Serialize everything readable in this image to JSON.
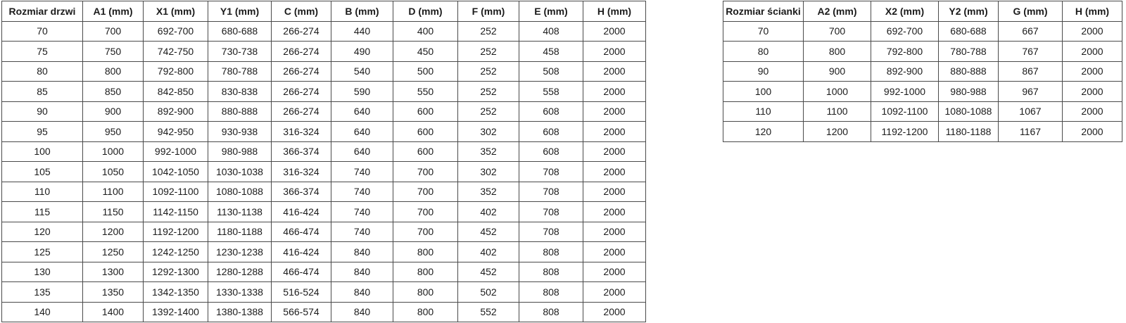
{
  "page": {
    "background_color": "#ffffff",
    "border_color": "#4a4a4a",
    "text_color": "#1b1b1b"
  },
  "door_table": {
    "headers": [
      "Rozmiar drzwi",
      "A1 (mm)",
      "X1 (mm)",
      "Y1 (mm)",
      "C (mm)",
      "B (mm)",
      "D (mm)",
      "F (mm)",
      "E (mm)",
      "H (mm)"
    ],
    "rows": [
      [
        "70",
        "700",
        "692-700",
        "680-688",
        "266-274",
        "440",
        "400",
        "252",
        "408",
        "2000"
      ],
      [
        "75",
        "750",
        "742-750",
        "730-738",
        "266-274",
        "490",
        "450",
        "252",
        "458",
        "2000"
      ],
      [
        "80",
        "800",
        "792-800",
        "780-788",
        "266-274",
        "540",
        "500",
        "252",
        "508",
        "2000"
      ],
      [
        "85",
        "850",
        "842-850",
        "830-838",
        "266-274",
        "590",
        "550",
        "252",
        "558",
        "2000"
      ],
      [
        "90",
        "900",
        "892-900",
        "880-888",
        "266-274",
        "640",
        "600",
        "252",
        "608",
        "2000"
      ],
      [
        "95",
        "950",
        "942-950",
        "930-938",
        "316-324",
        "640",
        "600",
        "302",
        "608",
        "2000"
      ],
      [
        "100",
        "1000",
        "992-1000",
        "980-988",
        "366-374",
        "640",
        "600",
        "352",
        "608",
        "2000"
      ],
      [
        "105",
        "1050",
        "1042-1050",
        "1030-1038",
        "316-324",
        "740",
        "700",
        "302",
        "708",
        "2000"
      ],
      [
        "110",
        "1100",
        "1092-1100",
        "1080-1088",
        "366-374",
        "740",
        "700",
        "352",
        "708",
        "2000"
      ],
      [
        "115",
        "1150",
        "1142-1150",
        "1130-1138",
        "416-424",
        "740",
        "700",
        "402",
        "708",
        "2000"
      ],
      [
        "120",
        "1200",
        "1192-1200",
        "1180-1188",
        "466-474",
        "740",
        "700",
        "452",
        "708",
        "2000"
      ],
      [
        "125",
        "1250",
        "1242-1250",
        "1230-1238",
        "416-424",
        "840",
        "800",
        "402",
        "808",
        "2000"
      ],
      [
        "130",
        "1300",
        "1292-1300",
        "1280-1288",
        "466-474",
        "840",
        "800",
        "452",
        "808",
        "2000"
      ],
      [
        "135",
        "1350",
        "1342-1350",
        "1330-1338",
        "516-524",
        "840",
        "800",
        "502",
        "808",
        "2000"
      ],
      [
        "140",
        "1400",
        "1392-1400",
        "1380-1388",
        "566-574",
        "840",
        "800",
        "552",
        "808",
        "2000"
      ]
    ]
  },
  "wall_table": {
    "headers": [
      "Rozmiar ścianki",
      "A2 (mm)",
      "X2 (mm)",
      "Y2 (mm)",
      "G (mm)",
      "H (mm)"
    ],
    "rows": [
      [
        "70",
        "700",
        "692-700",
        "680-688",
        "667",
        "2000"
      ],
      [
        "80",
        "800",
        "792-800",
        "780-788",
        "767",
        "2000"
      ],
      [
        "90",
        "900",
        "892-900",
        "880-888",
        "867",
        "2000"
      ],
      [
        "100",
        "1000",
        "992-1000",
        "980-988",
        "967",
        "2000"
      ],
      [
        "110",
        "1100",
        "1092-1100",
        "1080-1088",
        "1067",
        "2000"
      ],
      [
        "120",
        "1200",
        "1192-1200",
        "1180-1188",
        "1167",
        "2000"
      ]
    ]
  }
}
